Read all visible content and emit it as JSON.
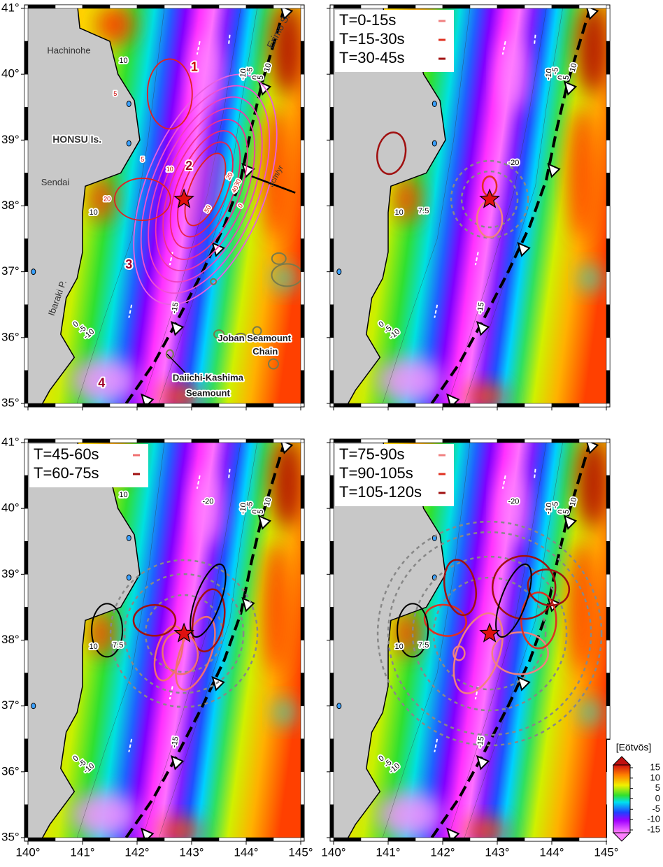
{
  "figure": {
    "lon_ticks": [
      {
        "value": 140,
        "label": "140°"
      },
      {
        "value": 141,
        "label": "141°"
      },
      {
        "value": 142,
        "label": "142°"
      },
      {
        "value": 143,
        "label": "143°"
      },
      {
        "value": 144,
        "label": "144°"
      },
      {
        "value": 145,
        "label": "145°"
      }
    ],
    "lat_ticks": [
      {
        "value": 35,
        "label": "35°"
      },
      {
        "value": 36,
        "label": "36°"
      },
      {
        "value": 37,
        "label": "37°"
      },
      {
        "value": 38,
        "label": "38°"
      },
      {
        "value": 39,
        "label": "39°"
      },
      {
        "value": 40,
        "label": "40°"
      },
      {
        "value": 41,
        "label": "41°"
      }
    ],
    "colorbar": {
      "label": "[Eötvös]",
      "ticks": [
        15,
        10,
        5,
        0,
        -5,
        -10,
        -15
      ]
    },
    "panels": [
      {
        "contour_labels": [
          "10",
          "10",
          "-10",
          "-5",
          "0",
          "5",
          "10",
          "0",
          "-5",
          "-10",
          "-15",
          "5",
          "5",
          "10",
          "20",
          "20",
          "30",
          "40",
          "50",
          "0"
        ],
        "annotations": [
          "Hachinohe",
          "HONSU Is.",
          "Sendai",
          "Ibaraki P.",
          "Erimo S.",
          "1",
          "2",
          "3",
          "4",
          "3cm/yr",
          "Joban Seamount",
          "Chain",
          "Daiichi-Kashima",
          "Seamount"
        ],
        "legend": []
      },
      {
        "contour_labels": [
          "10",
          "10",
          "-10",
          "-5",
          "0",
          "5",
          "10",
          "0",
          "-5",
          "-10",
          "-15",
          "7.5",
          "-20"
        ],
        "annotations": [],
        "legend": [
          {
            "name": "T=0-15s",
            "color": "#f08080"
          },
          {
            "name": "T=15-30s",
            "color": "#e03020"
          },
          {
            "name": "T=30-45s",
            "color": "#a01010"
          }
        ]
      },
      {
        "contour_labels": [
          "10",
          "10",
          "-10",
          "-5",
          "0",
          "5",
          "10",
          "0",
          "-5",
          "-10",
          "-15",
          "7.5",
          "-20"
        ],
        "annotations": [],
        "legend": [
          {
            "name": "T=45-60s",
            "color": "#f07070"
          },
          {
            "name": "T=60-75s",
            "color": "#a01010"
          }
        ]
      },
      {
        "contour_labels": [
          "10",
          "10",
          "-10",
          "-5",
          "0",
          "5",
          "10",
          "0",
          "-5",
          "-10",
          "-15",
          "7.5",
          "-20"
        ],
        "annotations": [],
        "legend": [
          {
            "name": "T=75-90s",
            "color": "#f08080"
          },
          {
            "name": "T=90-105s",
            "color": "#e03020"
          },
          {
            "name": "T=105-120s",
            "color": "#a01010"
          }
        ]
      }
    ]
  }
}
